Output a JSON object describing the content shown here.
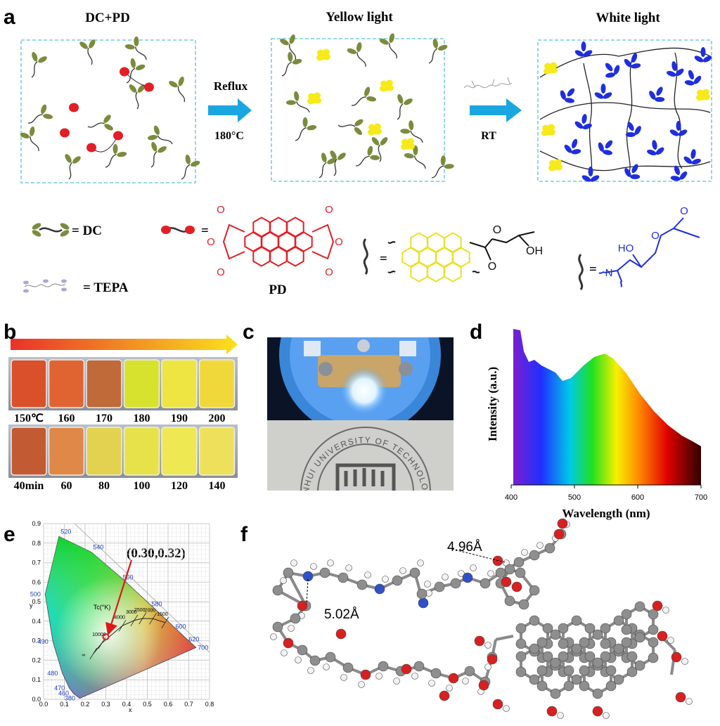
{
  "panel_a": {
    "label": "a",
    "titles": [
      "DC+PD",
      "Yellow light",
      "White light"
    ],
    "step1_top": "Reflux",
    "step1_bottom": "180°C",
    "step2": "RT",
    "legend": {
      "dc": "= DC",
      "pd_eq": "=",
      "pd": "PD",
      "tepa": "= TEPA",
      "yellow_eq": "=",
      "blue_eq": "="
    },
    "pd_atoms": [
      "O",
      "O",
      "O",
      "O",
      "O",
      "O"
    ],
    "yellow_atoms": [
      "O",
      "O",
      "OH"
    ],
    "blue_atoms": [
      "O",
      "O",
      "HO",
      "N"
    ]
  },
  "panel_b": {
    "label": "b",
    "temperatures": [
      "150℃",
      "160",
      "170",
      "180",
      "190",
      "200"
    ],
    "times": [
      "40min",
      "60",
      "80",
      "100",
      "120",
      "140"
    ],
    "temperature_colors": [
      "#d9502a",
      "#e06432",
      "#c06a3a",
      "#d6e22e",
      "#eee442",
      "#f0d83a"
    ],
    "time_colors": [
      "#c25a34",
      "#e08848",
      "#e2d250",
      "#e8e24a",
      "#eee852",
      "#eee05a"
    ]
  },
  "panel_c": {
    "label": "c",
    "photo_text": "ANHUI UNIVERSITY OF TECHNOLOGY"
  },
  "panel_d": {
    "label": "d",
    "xlabel": "Wavelength (nm)",
    "ylabel": "Intensity (a.u.)",
    "xlim": [
      400,
      700
    ],
    "xticks": [
      400,
      500,
      600,
      700
    ]
  },
  "panel_e": {
    "label": "e",
    "point_label": "(0.30,0.32)",
    "point": {
      "x": 0.3,
      "y": 0.32
    },
    "xlabel": "x",
    "ylabel": "y",
    "cct_title": "Tc(°K)",
    "xlim": [
      0,
      0.8
    ],
    "ylim": [
      0,
      0.9
    ],
    "xticks": [
      {
        "value": 0,
        "label": "0.0"
      },
      0.1,
      0.2,
      0.3,
      0.4,
      0.5,
      0.6,
      0.7,
      0.8
    ],
    "yticks": [
      {
        "value": 0,
        "label": "0.0"
      },
      0.1,
      0.2,
      0.3,
      0.4,
      0.5,
      0.6,
      0.7,
      0.8,
      0.9
    ],
    "locus": [
      {
        "value": 380,
        "x": 0.174,
        "y": 0.005
      },
      {
        "value": 460,
        "x": 0.144,
        "y": 0.03
      },
      {
        "value": 470,
        "x": 0.124,
        "y": 0.058
      },
      {
        "value": 480,
        "x": 0.091,
        "y": 0.133
      },
      {
        "value": 490,
        "x": 0.045,
        "y": 0.295
      },
      {
        "value": 500,
        "x": 0.008,
        "y": 0.538
      },
      {
        "value": 520,
        "x": 0.074,
        "y": 0.834
      },
      {
        "value": 540,
        "x": 0.23,
        "y": 0.754
      },
      {
        "value": 560,
        "x": 0.373,
        "y": 0.624
      },
      {
        "value": 580,
        "x": 0.512,
        "y": 0.487
      },
      {
        "value": 600,
        "x": 0.627,
        "y": 0.372
      },
      {
        "value": 620,
        "x": 0.691,
        "y": 0.308
      },
      {
        "value": 700,
        "x": 0.735,
        "y": 0.265
      }
    ],
    "cct": [
      {
        "label": "∞",
        "x": 0.24,
        "y": 0.234
      },
      {
        "value": 10000,
        "x": 0.281,
        "y": 0.288
      },
      {
        "value": 4000,
        "x": 0.38,
        "y": 0.377
      },
      {
        "value": 3000,
        "x": 0.437,
        "y": 0.404
      },
      {
        "value": 2500,
        "x": 0.477,
        "y": 0.414
      },
      {
        "value": 2000,
        "x": 0.527,
        "y": 0.413
      },
      {
        "value": 1500,
        "x": 0.586,
        "y": 0.393
      }
    ]
  },
  "panel_f": {
    "label": "f",
    "distances": [
      "4.96Å",
      "5.02Å"
    ]
  }
}
